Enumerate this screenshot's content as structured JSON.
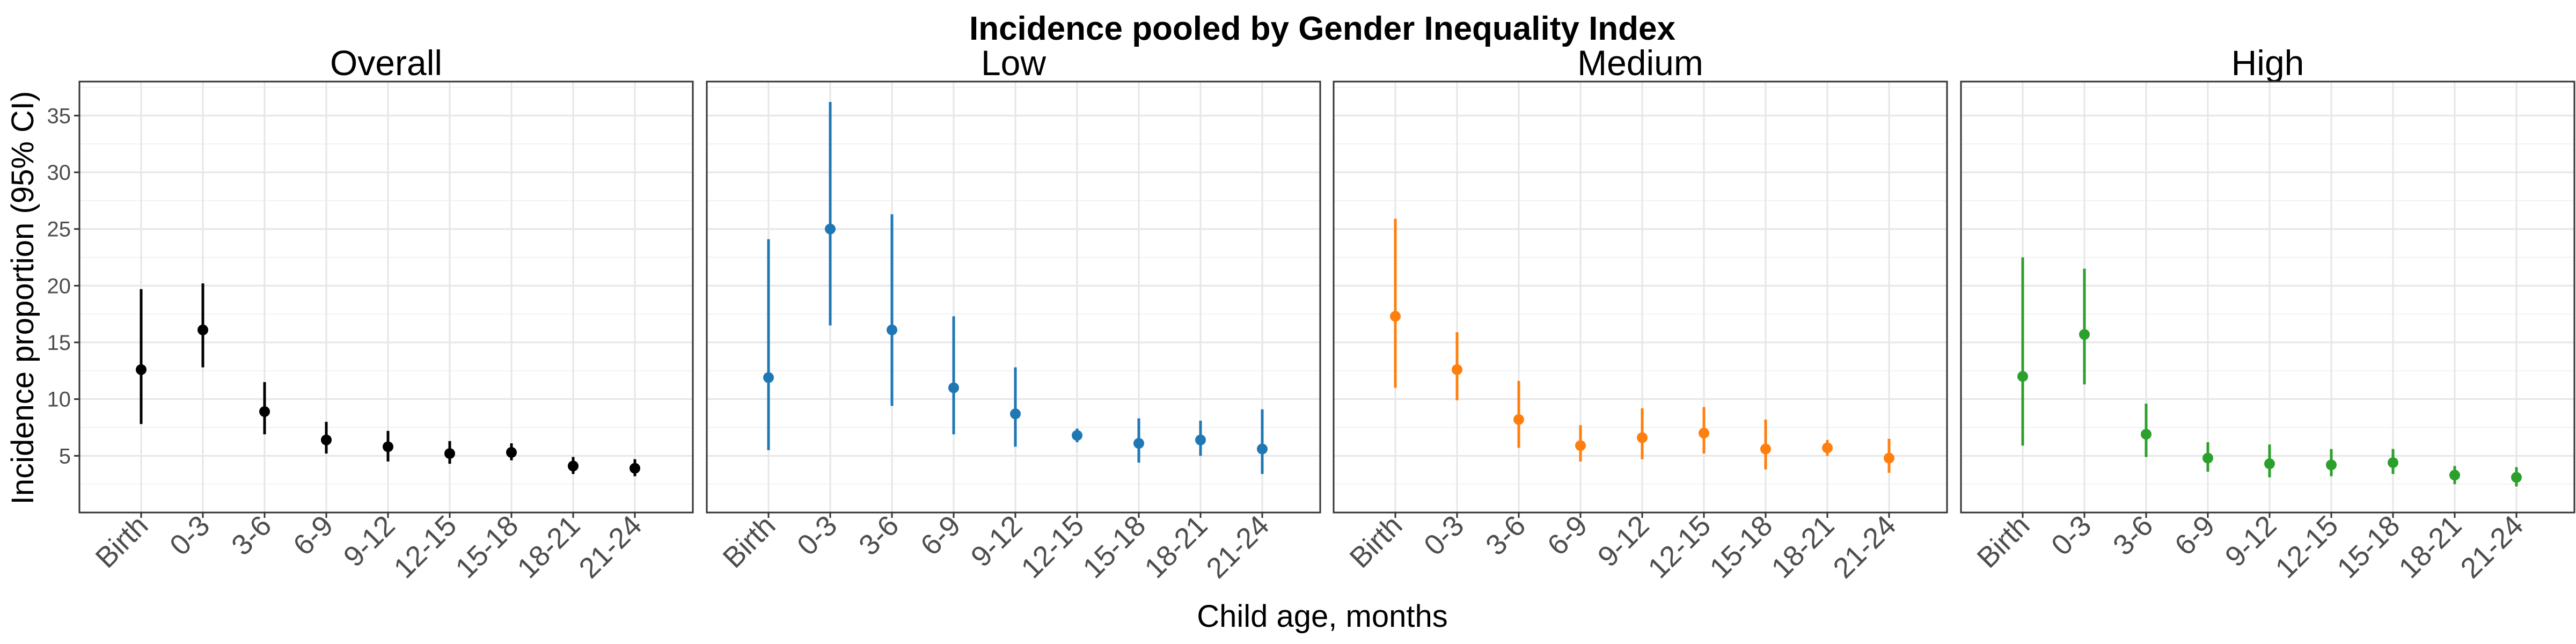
{
  "chart_data": {
    "type": "scatter",
    "title": "Incidence pooled by Gender Inequality Index",
    "xlabel": "Child age, months",
    "ylabel": "Incidence proportion (95% CI)",
    "categories": [
      "Birth",
      "0-3",
      "3-6",
      "6-9",
      "9-12",
      "12-15",
      "15-18",
      "18-21",
      "21-24"
    ],
    "y_ticks": [
      5,
      10,
      15,
      20,
      25,
      30,
      35
    ],
    "ylim": [
      0,
      38
    ],
    "grid": true,
    "legend": "none",
    "panels": [
      {
        "name": "Overall",
        "color": "#000000",
        "estimate": [
          12.6,
          16.1,
          8.9,
          6.4,
          5.8,
          5.2,
          5.3,
          4.1,
          3.9
        ],
        "lower": [
          7.8,
          12.8,
          6.9,
          5.2,
          4.5,
          4.3,
          4.6,
          3.4,
          3.2
        ],
        "upper": [
          19.7,
          20.2,
          11.5,
          8.0,
          7.2,
          6.3,
          6.1,
          4.9,
          4.7
        ]
      },
      {
        "name": "Low",
        "color": "#1f77b4",
        "estimate": [
          11.9,
          25.0,
          16.1,
          11.0,
          8.7,
          6.8,
          6.1,
          6.4,
          5.6
        ],
        "lower": [
          5.5,
          16.5,
          9.4,
          6.9,
          5.8,
          6.2,
          4.4,
          5.0,
          3.4
        ],
        "upper": [
          24.1,
          36.2,
          26.3,
          17.3,
          12.8,
          7.4,
          8.3,
          8.1,
          9.1
        ]
      },
      {
        "name": "Medium",
        "color": "#ff7f0e",
        "estimate": [
          17.3,
          12.6,
          8.2,
          5.9,
          6.6,
          7.0,
          5.6,
          5.7,
          4.8
        ],
        "lower": [
          11.0,
          9.9,
          5.7,
          4.5,
          4.7,
          5.2,
          3.8,
          5.0,
          3.5
        ],
        "upper": [
          25.9,
          15.9,
          11.6,
          7.7,
          9.2,
          9.3,
          8.2,
          6.4,
          6.5
        ]
      },
      {
        "name": "High",
        "color": "#2ca02c",
        "estimate": [
          12.0,
          15.7,
          6.9,
          4.8,
          4.3,
          4.2,
          4.4,
          3.3,
          3.1
        ],
        "lower": [
          5.9,
          11.3,
          4.9,
          3.6,
          3.1,
          3.2,
          3.4,
          2.5,
          2.3
        ],
        "upper": [
          22.5,
          21.5,
          9.6,
          6.2,
          6.0,
          5.6,
          5.6,
          4.1,
          4.0
        ]
      }
    ]
  }
}
